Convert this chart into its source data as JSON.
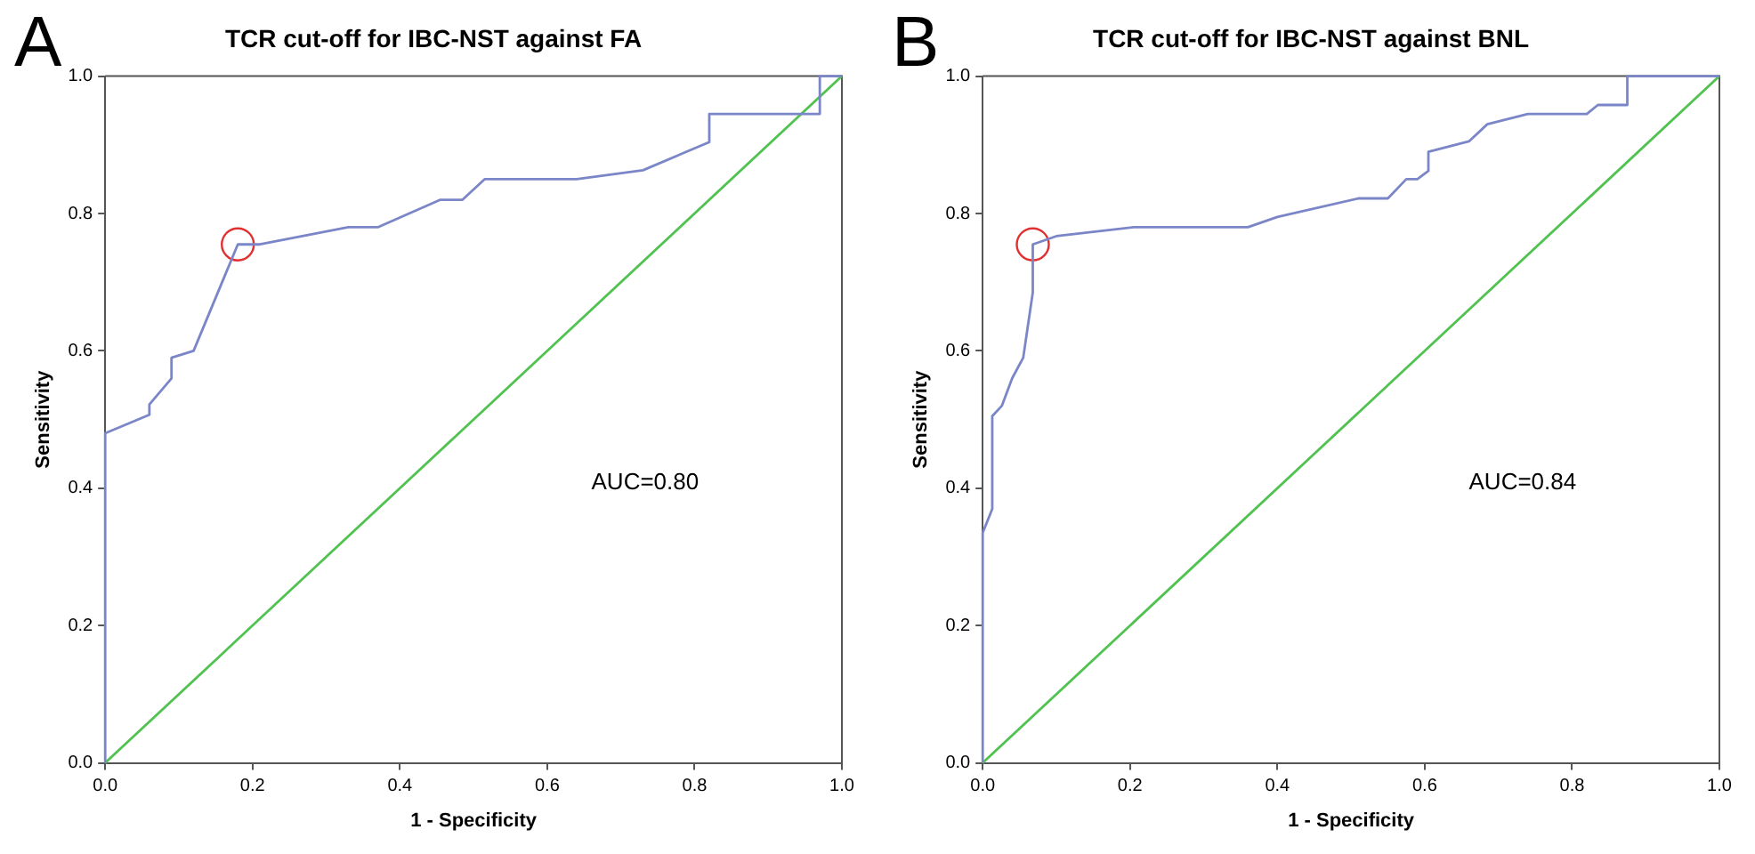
{
  "chart_data": [
    {
      "type": "line",
      "title": "TCR cut-off for IBC-NST against FA",
      "xlabel": "1 - Specificity",
      "ylabel": "Sensitivity",
      "annotations": [
        "A",
        "AUC=0.80"
      ],
      "series": [
        {
          "color": "#7b86c8",
          "x": [
            0,
            0,
            0.06,
            0.06,
            0.09,
            0.09,
            0.12,
            0.18,
            0.21,
            0.33,
            0.37,
            0.455,
            0.485,
            0.515,
            0.64,
            0.73,
            0.82,
            0.82,
            0.97,
            0.97,
            1
          ],
          "values": [
            0,
            0.48,
            0.507,
            0.522,
            0.56,
            0.59,
            0.6,
            0.755,
            0.755,
            0.78,
            0.78,
            0.82,
            0.82,
            0.85,
            0.85,
            0.863,
            0.904,
            0.945,
            0.945,
            1,
            1
          ]
        },
        {
          "color": "#4fc24f",
          "x": [
            0,
            1
          ],
          "values": [
            0,
            1
          ]
        },
        {
          "type": "scatter",
          "color": "#e03030",
          "marker": "circle",
          "x": [
            0.18
          ],
          "values": [
            0.755
          ]
        }
      ],
      "xlim": [
        0,
        1
      ],
      "ylim": [
        0,
        1
      ],
      "xticks": [
        {
          "value": 0,
          "label": "0.0"
        },
        {
          "value": 0.2,
          "label": "0.2"
        },
        {
          "value": 0.4,
          "label": "0.4"
        },
        {
          "value": 0.6,
          "label": "0.6"
        },
        {
          "value": 0.8,
          "label": "0.8"
        },
        {
          "value": 1,
          "label": "1.0"
        }
      ],
      "yticks": [
        {
          "value": 0,
          "label": "0.0"
        },
        {
          "value": 0.2,
          "label": "0.2"
        },
        {
          "value": 0.4,
          "label": "0.4"
        },
        {
          "value": 0.6,
          "label": "0.6"
        },
        {
          "value": 0.8,
          "label": "0.8"
        },
        {
          "value": 1,
          "label": "1.0"
        }
      ],
      "grid": false,
      "legend": false,
      "marker": "none",
      "line_style": "solid"
    },
    {
      "type": "line",
      "title": "TCR cut-off for IBC-NST against BNL",
      "xlabel": "1 - Specificity",
      "ylabel": "Sensitivity",
      "annotations": [
        "B",
        "AUC=0.84"
      ],
      "series": [
        {
          "color": "#7b86c8",
          "x": [
            0,
            0,
            0.013,
            0.013,
            0.026,
            0.04,
            0.055,
            0.068,
            0.068,
            0.1,
            0.205,
            0.36,
            0.4,
            0.51,
            0.55,
            0.575,
            0.59,
            0.605,
            0.605,
            0.66,
            0.685,
            0.74,
            0.82,
            0.835,
            0.875,
            0.875,
            1
          ],
          "values": [
            0,
            0.335,
            0.37,
            0.505,
            0.52,
            0.56,
            0.59,
            0.685,
            0.755,
            0.767,
            0.78,
            0.78,
            0.795,
            0.822,
            0.822,
            0.85,
            0.85,
            0.862,
            0.89,
            0.905,
            0.93,
            0.945,
            0.945,
            0.958,
            0.958,
            1,
            1
          ]
        },
        {
          "color": "#4fc24f",
          "x": [
            0,
            1
          ],
          "values": [
            0,
            1
          ]
        },
        {
          "type": "scatter",
          "color": "#e03030",
          "marker": "circle",
          "x": [
            0.068
          ],
          "values": [
            0.755
          ]
        }
      ],
      "xlim": [
        0,
        1
      ],
      "ylim": [
        0,
        1
      ],
      "xticks": [
        {
          "value": 0,
          "label": "0.0"
        },
        {
          "value": 0.2,
          "label": "0.2"
        },
        {
          "value": 0.4,
          "label": "0.4"
        },
        {
          "value": 0.6,
          "label": "0.6"
        },
        {
          "value": 0.8,
          "label": "0.8"
        },
        {
          "value": 1,
          "label": "1.0"
        }
      ],
      "yticks": [
        {
          "value": 0,
          "label": "0.0"
        },
        {
          "value": 0.2,
          "label": "0.2"
        },
        {
          "value": 0.4,
          "label": "0.4"
        },
        {
          "value": 0.6,
          "label": "0.6"
        },
        {
          "value": 0.8,
          "label": "0.8"
        },
        {
          "value": 1,
          "label": "1.0"
        }
      ],
      "grid": false,
      "legend": false,
      "marker": "none",
      "line_style": "solid"
    }
  ]
}
